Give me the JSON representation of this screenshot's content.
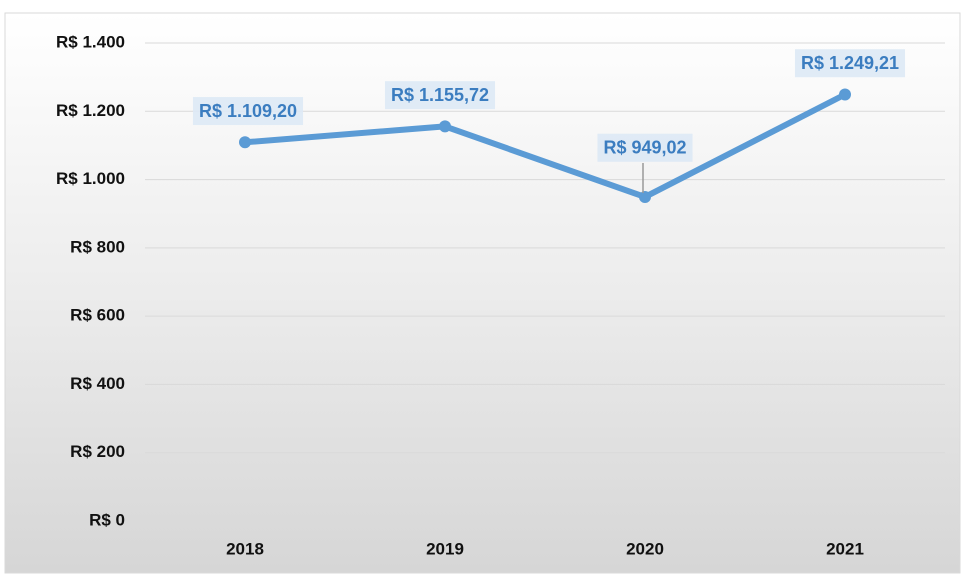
{
  "chart_data": {
    "type": "line",
    "categories": [
      "2018",
      "2019",
      "2020",
      "2021"
    ],
    "series": [
      {
        "color": "#5b9bd5",
        "values": [
          1109.2,
          1155.72,
          949.02,
          1249.21
        ],
        "value_labels": [
          "R$ 1.109,20",
          "R$ 1.155,72",
          "R$ 949,02",
          "R$ 1.249,21"
        ]
      }
    ],
    "ylim": [
      0,
      1400
    ],
    "yticks": [
      {
        "value": 0,
        "label": "R$ 0"
      },
      {
        "value": 200,
        "label": "R$ 200"
      },
      {
        "value": 400,
        "label": "R$ 400"
      },
      {
        "value": 600,
        "label": "R$ 600"
      },
      {
        "value": 800,
        "label": "R$ 800"
      },
      {
        "value": 1000,
        "label": "R$ 1.000"
      },
      {
        "value": 1200,
        "label": "R$ 1.200"
      },
      {
        "value": 1400,
        "label": "R$ 1.400"
      }
    ],
    "grid": true
  }
}
